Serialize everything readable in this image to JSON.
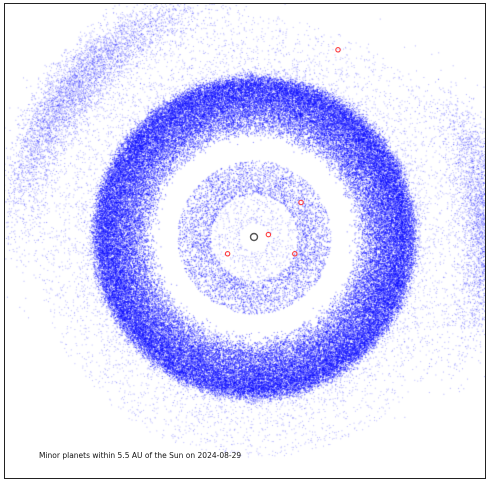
{
  "chart_data": {
    "type": "scatter",
    "title": "",
    "caption": "Minor planets within 5.5 AU of the Sun on 2024-08-29",
    "xlabel": "",
    "ylabel": "",
    "xlim": [
      -5.5,
      5.5
    ],
    "ylim": [
      -5.5,
      5.5
    ],
    "axes_visible": false,
    "grid": false,
    "sun": {
      "x": 0,
      "y": 0,
      "color": "#555555"
    },
    "minor_planet_color": "#0000ff",
    "planets_color": "#ff3b3b",
    "planets": [
      {
        "x": 0.3,
        "y": 0.05
      },
      {
        "x": 0.98,
        "y": 0.72
      },
      {
        "x": 0.85,
        "y": -0.35
      },
      {
        "x": -0.55,
        "y": -0.35
      },
      {
        "x": 1.75,
        "y": 3.9
      }
    ],
    "populations": [
      {
        "kind": "main-belt",
        "r_inner": 2.1,
        "r_outer": 3.3,
        "count": 70000
      },
      {
        "kind": "near-earth-ring",
        "r_inner": 0.9,
        "r_outer": 1.6,
        "count": 4500
      },
      {
        "kind": "inner-scatter",
        "r_inner": 0.3,
        "r_outer": 0.9,
        "count": 600
      },
      {
        "kind": "outer-halo",
        "r_inner": 3.3,
        "r_outer": 4.6,
        "count": 6000
      },
      {
        "kind": "trojan-L4",
        "angle_deg": 140,
        "spread_deg": 30,
        "r": 4.9,
        "count": 5000
      },
      {
        "kind": "trojan-L5",
        "angle_deg": 5,
        "spread_deg": 24,
        "r": 4.9,
        "count": 4000
      }
    ]
  }
}
